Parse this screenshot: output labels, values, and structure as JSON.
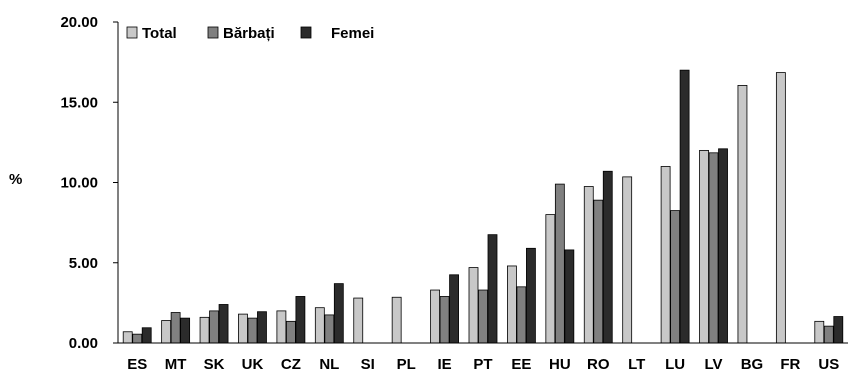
{
  "chart_data": {
    "type": "bar",
    "ylabel": "%",
    "ylim": [
      0,
      20
    ],
    "yticks": [
      "0.00",
      "5.00",
      "10.00",
      "15.00",
      "20.00"
    ],
    "grid": false,
    "legend_position": "top-left",
    "categories": [
      "ES",
      "MT",
      "SK",
      "UK",
      "CZ",
      "NL",
      "SI",
      "PL",
      "IE",
      "PT",
      "EE",
      "HU",
      "RO",
      "LT",
      "LU",
      "LV",
      "BG",
      "FR",
      "US"
    ],
    "series": [
      {
        "name": "Total",
        "color": "#c8c8c8",
        "values": [
          0.7,
          1.4,
          1.6,
          1.8,
          2.0,
          2.2,
          2.8,
          2.85,
          3.3,
          4.7,
          4.8,
          8.0,
          9.75,
          10.35,
          11.0,
          12.0,
          16.05,
          16.85,
          1.35
        ]
      },
      {
        "name": "Bărbați",
        "color": "#808080",
        "values": [
          0.55,
          1.9,
          2.0,
          1.55,
          1.35,
          1.75,
          null,
          null,
          2.9,
          3.3,
          3.5,
          9.9,
          8.9,
          null,
          8.25,
          11.85,
          null,
          null,
          1.05
        ]
      },
      {
        "name": "Femei",
        "color": "#2b2b2b",
        "values": [
          0.95,
          1.55,
          2.4,
          1.95,
          2.9,
          3.7,
          null,
          null,
          4.25,
          6.75,
          5.9,
          5.8,
          10.7,
          null,
          17.0,
          12.1,
          null,
          null,
          1.65
        ]
      }
    ]
  }
}
